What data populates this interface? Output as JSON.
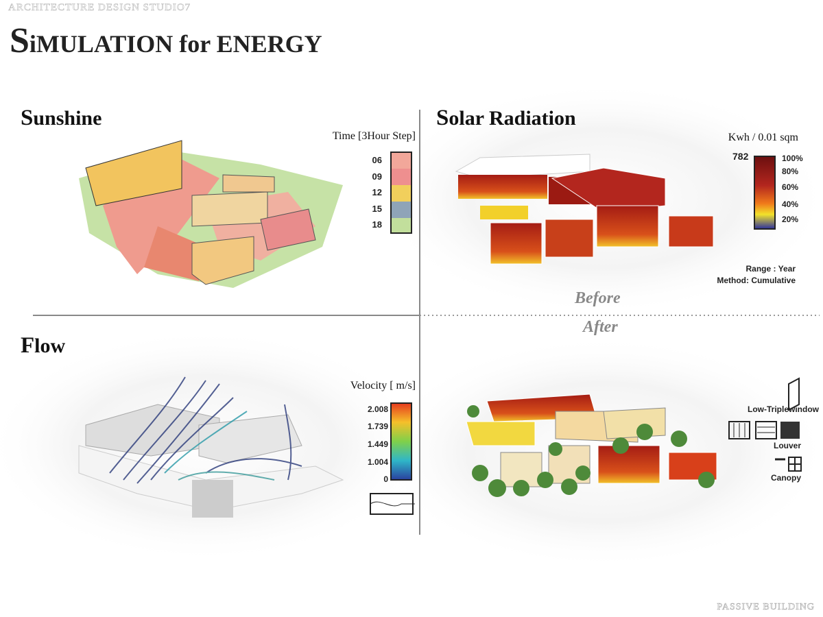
{
  "header": {
    "studio": "ARCHITECTURE DESIGN STUDIO7",
    "title": "SiMULATION for ENERGY"
  },
  "panels": {
    "sunshine": {
      "title": "Sunshine",
      "legend_title": "Time [3Hour Step]",
      "legend": [
        "06",
        "09",
        "12",
        "15",
        "18"
      ]
    },
    "solar": {
      "title": "Solar Radiation",
      "legend_title": "Kwh / 0.01 sqm",
      "max": "782",
      "legend": [
        "100%",
        "80%",
        "60%",
        "40%",
        "20%"
      ],
      "notes": [
        "Range : Year",
        "Method: Cumulative"
      ]
    },
    "flow": {
      "title": "Flow",
      "legend_title": "Velocity [ m/s]",
      "legend": [
        "2.008",
        "1.739",
        "1.449",
        "1.004",
        "0"
      ]
    },
    "after": {
      "labels": [
        "Low-Triplewindow",
        "Louver",
        "Canopy"
      ]
    }
  },
  "divider": {
    "before": "Before",
    "after": "After"
  },
  "footer": "PASSIVE BUILDING"
}
